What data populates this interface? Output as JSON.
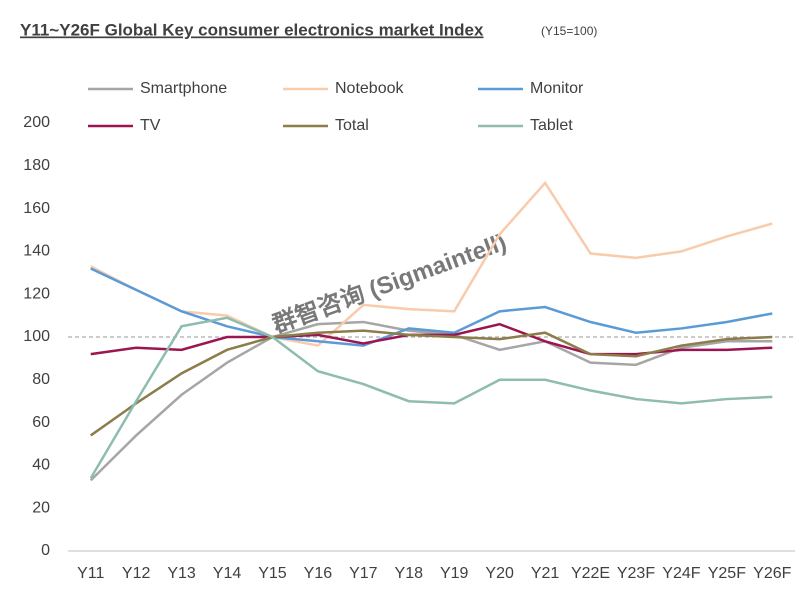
{
  "chart_data": {
    "type": "line",
    "title": "Y11~Y26F Global Key consumer electronics market Index",
    "subtitle": "(Y15=100)",
    "watermark": "群智咨询 (Sigmaintell)",
    "categories": [
      "Y11",
      "Y12",
      "Y13",
      "Y14",
      "Y15",
      "Y16",
      "Y17",
      "Y18",
      "Y19",
      "Y20",
      "Y21",
      "Y22E",
      "Y23F",
      "Y24F",
      "Y25F",
      "Y26F"
    ],
    "series": [
      {
        "name": "Smartphone",
        "color": "#a6a6a6",
        "values": [
          33,
          54,
          73,
          88,
          100,
          106,
          107,
          103,
          101,
          94,
          98,
          88,
          87,
          95,
          98,
          98
        ]
      },
      {
        "name": "Notebook",
        "color": "#f8cbad",
        "values": [
          133,
          122,
          112,
          110,
          100,
          96,
          115,
          113,
          112,
          148,
          172,
          139,
          137,
          140,
          147,
          153
        ]
      },
      {
        "name": "Monitor",
        "color": "#5b9bd5",
        "values": [
          132,
          122,
          112,
          105,
          100,
          98,
          96,
          104,
          102,
          112,
          114,
          107,
          102,
          104,
          107,
          111
        ]
      },
      {
        "name": "TV",
        "color": "#9c1550",
        "values": [
          92,
          95,
          94,
          100,
          100,
          101,
          97,
          101,
          101,
          106,
          98,
          92,
          92,
          94,
          94,
          95
        ]
      },
      {
        "name": "Total",
        "color": "#8c7d4a",
        "values": [
          54,
          69,
          83,
          94,
          100,
          102,
          103,
          101,
          100,
          99,
          102,
          92,
          91,
          96,
          99,
          100
        ]
      },
      {
        "name": "Tablet",
        "color": "#8fbcb0",
        "values": [
          34,
          70,
          105,
          109,
          100,
          84,
          78,
          70,
          69,
          80,
          80,
          75,
          71,
          69,
          71,
          72
        ]
      }
    ],
    "reference_line": 100,
    "ylim": [
      0,
      200
    ],
    "yticks": [
      0,
      20,
      40,
      60,
      80,
      100,
      120,
      140,
      160,
      180,
      200
    ],
    "grid": false
  }
}
